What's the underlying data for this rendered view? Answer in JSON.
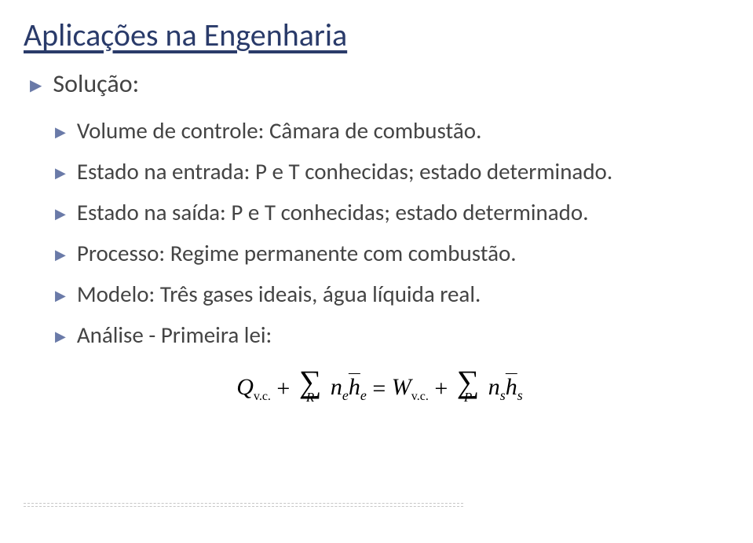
{
  "title": "Aplicações na Engenharia",
  "bullets": {
    "b0": "Solução:",
    "s0": "Volume de controle: Câmara de combustão.",
    "s1": "Estado na entrada: P e T conhecidas; estado determinado.",
    "s2": "Estado na saída: P e T conhecidas; estado determinado.",
    "s3": "Processo:  Regime permanente com combustão.",
    "s4": "Modelo:  Três gases ideais, água líquida real.",
    "s5": "Análise - Primeira lei:"
  },
  "formula": {
    "Q_sym": "Q",
    "Q_sub": "v.c.",
    "plus": "+",
    "sum_sym": "∑",
    "sum_idx_left": "R",
    "n_sym": "n",
    "e_sub": "e",
    "h_sym": "h",
    "he_sub": "e",
    "eq": "=",
    "W_sym": "W",
    "W_sub": "v.c.",
    "sum_idx_right": "P",
    "s_sub": "s",
    "hs_sub": "s"
  },
  "colors": {
    "title": "#2a3b6a",
    "marker": "#6a7aa8",
    "text": "#444444",
    "formula": "#000000",
    "background": "#ffffff",
    "dashed": "#b0b0b0"
  }
}
